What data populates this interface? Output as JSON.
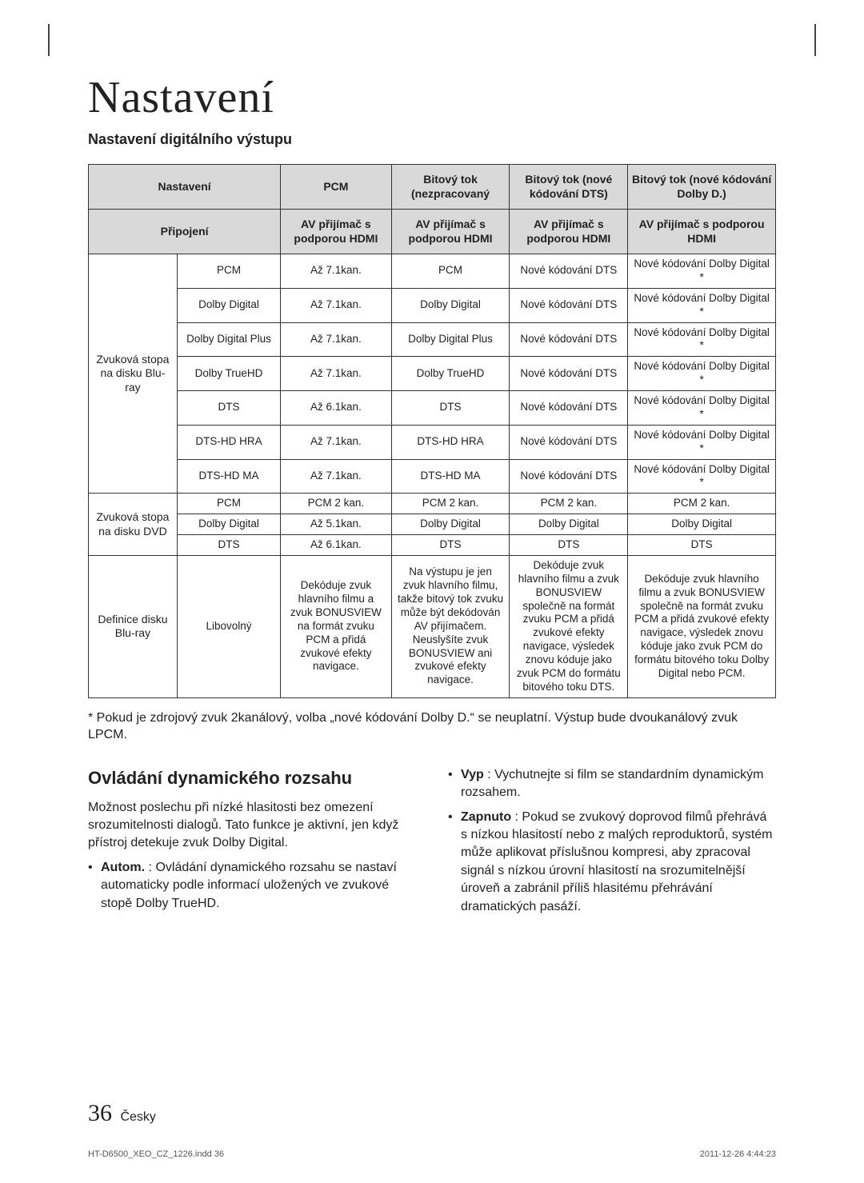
{
  "page": {
    "title": "Nastavení",
    "subtitle": "Nastavení digitálního výstupu",
    "page_number": "36",
    "page_lang": "Česky",
    "footer_left": "HT-D6500_XEO_CZ_1226.indd   36",
    "footer_right": "2011-12-26   4:44:23"
  },
  "table": {
    "col_widths_pct": [
      12,
      14,
      15,
      16,
      16,
      20
    ],
    "header1": {
      "c0": "Nastavení",
      "c1": "PCM",
      "c2": "Bitový tok (nezpracovaný",
      "c3": "Bitový tok (nové kódování DTS)",
      "c4": "Bitový tok (nové kódování Dolby D.)"
    },
    "header2": {
      "c0": "Připojení",
      "c1": "AV přijímač s podporou HDMI",
      "c2": "AV přijímač s podporou HDMI",
      "c3": "AV přijímač s podporou HDMI",
      "c4": "AV přijímač s podporou HDMI"
    },
    "group1_label": "Zvuková stopa na disku Blu-ray",
    "group1_rows": [
      {
        "label": "PCM",
        "c1": "Až 7.1kan.",
        "c2": "PCM",
        "c3": "Nové kódování DTS",
        "c4": "Nové kódování Dolby Digital *"
      },
      {
        "label": "Dolby Digital",
        "c1": "Až 7.1kan.",
        "c2": "Dolby Digital",
        "c3": "Nové kódování DTS",
        "c4": "Nové kódování Dolby Digital *"
      },
      {
        "label": "Dolby Digital Plus",
        "c1": "Až 7.1kan.",
        "c2": "Dolby Digital Plus",
        "c3": "Nové kódování DTS",
        "c4": "Nové kódování Dolby Digital *"
      },
      {
        "label": "Dolby TrueHD",
        "c1": "Až 7.1kan.",
        "c2": "Dolby TrueHD",
        "c3": "Nové kódování DTS",
        "c4": "Nové kódování Dolby Digital *"
      },
      {
        "label": "DTS",
        "c1": "Až 6.1kan.",
        "c2": "DTS",
        "c3": "Nové kódování DTS",
        "c4": "Nové kódování Dolby Digital *"
      },
      {
        "label": "DTS-HD HRA",
        "c1": "Až 7.1kan.",
        "c2": "DTS-HD HRA",
        "c3": "Nové kódování DTS",
        "c4": "Nové kódování Dolby Digital *"
      },
      {
        "label": "DTS-HD MA",
        "c1": "Až 7.1kan.",
        "c2": "DTS-HD MA",
        "c3": "Nové kódování DTS",
        "c4": "Nové kódování Dolby Digital *"
      }
    ],
    "group2_label": "Zvuková stopa na disku DVD",
    "group2_rows": [
      {
        "label": "PCM",
        "c1": "PCM 2 kan.",
        "c2": "PCM 2 kan.",
        "c3": "PCM 2 kan.",
        "c4": "PCM 2 kan."
      },
      {
        "label": "Dolby Digital",
        "c1": "Až 5.1kan.",
        "c2": "Dolby Digital",
        "c3": "Dolby Digital",
        "c4": "Dolby Digital"
      },
      {
        "label": "DTS",
        "c1": "Až 6.1kan.",
        "c2": "DTS",
        "c3": "DTS",
        "c4": "DTS"
      }
    ],
    "group3_label": "Definice disku Blu-ray",
    "group3_row": {
      "label": "Libovolný",
      "c1": "Dekóduje zvuk hlavního filmu a zvuk BONUSVIEW na formát zvuku PCM a přidá zvukové efekty navigace.",
      "c2": "Na výstupu je jen zvuk hlavního filmu, takže bitový tok zvuku může být dekódován AV přijímačem. Neuslyšíte zvuk BONUSVIEW ani zvukové efekty navigace.",
      "c3": "Dekóduje zvuk hlavního filmu a zvuk BONUSVIEW společně na formát zvuku PCM a přidá zvukové efekty navigace, výsledek znovu kóduje jako zvuk PCM do formátu bitového toku DTS.",
      "c4": "Dekóduje zvuk hlavního filmu a zvuk BONUSVIEW společně na formát zvuku PCM a přidá zvukové efekty navigace, výsledek znovu kóduje jako zvuk PCM do formátu bitového toku Dolby Digital nebo PCM."
    }
  },
  "footnote": "* Pokud je zdrojový zvuk 2kanálový, volba „nové kódování Dolby D.“ se neuplatní. Výstup bude dvoukanálový zvuk LPCM.",
  "section_title": "Ovládání dynamického rozsahu",
  "left_para": "Možnost poslechu při nízké hlasitosti bez omezení srozumitelnosti dialogů. Tato funkce je aktivní, jen když přístroj detekuje zvuk Dolby Digital.",
  "bullets": {
    "autom_label": "Autom.",
    "autom_text": " : Ovládání dynamického rozsahu se nastaví automaticky podle informací uložených ve zvukové stopě Dolby TrueHD.",
    "vyp_label": "Vyp",
    "vyp_text": " : Vychutnejte si film se standardním dynamickým rozsahem.",
    "zap_label": "Zapnuto",
    "zap_text": " : Pokud se zvukový doprovod filmů přehrává s nízkou hlasitostí nebo z malých reproduktorů, systém může aplikovat příslušnou kompresi, aby zpracoval signál s nízkou úrovní hlasitostí na srozumitelnější úroveň a zabránil příliš hlasitému přehrávání dramatických pasáží."
  }
}
